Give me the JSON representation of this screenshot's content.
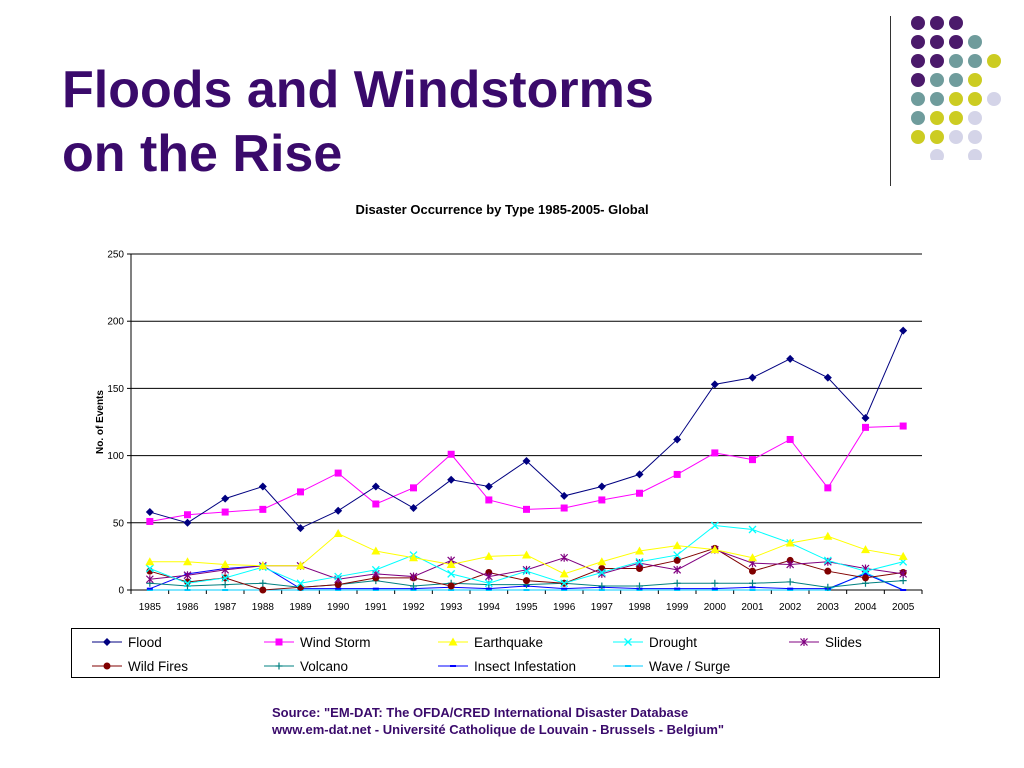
{
  "slide": {
    "title_line1": "Floods and Windstorms",
    "title_line2": "on the Rise",
    "source_line1": "Source: \"EM-DAT: The OFDA/CRED International Disaster Database",
    "source_line2": "www.em-dat.net - Université Catholique de Louvain - Brussels - Belgium\""
  },
  "decoration": {
    "dot_colors": {
      "purple": "#4b1a6b",
      "teal": "#6f9c9c",
      "yellow": "#cccc22",
      "lavender": "#d4d4e8"
    }
  },
  "chart_data": {
    "type": "line",
    "title": "Disaster Occurrence by Type 1985-2005- Global",
    "xlabel": "",
    "ylabel": "No. of Events",
    "ylim": [
      0,
      250
    ],
    "yticks": [
      0,
      50,
      100,
      150,
      200,
      250
    ],
    "grid": true,
    "legend": "bottom",
    "x": [
      "1985",
      "1986",
      "1987",
      "1988",
      "1989",
      "1990",
      "1991",
      "1992",
      "1993",
      "1994",
      "1995",
      "1996",
      "1997",
      "1998",
      "1999",
      "2000",
      "2001",
      "2002",
      "2003",
      "2004",
      "2005"
    ],
    "series": [
      {
        "name": "Flood",
        "color": "#000080",
        "marker": "diamond",
        "values": [
          58,
          50,
          68,
          77,
          46,
          59,
          77,
          61,
          82,
          77,
          96,
          70,
          77,
          86,
          112,
          153,
          158,
          172,
          158,
          128,
          193
        ]
      },
      {
        "name": "Wind Storm",
        "color": "#ff00ff",
        "marker": "square",
        "values": [
          51,
          56,
          58,
          60,
          73,
          87,
          64,
          76,
          101,
          67,
          60,
          61,
          67,
          72,
          86,
          102,
          97,
          112,
          76,
          121,
          122
        ]
      },
      {
        "name": "Earthquake",
        "color": "#ffff00",
        "marker": "triangle",
        "values": [
          21,
          21,
          19,
          18,
          18,
          42,
          29,
          24,
          19,
          25,
          26,
          12,
          21,
          29,
          33,
          30,
          24,
          35,
          40,
          30,
          25
        ]
      },
      {
        "name": "Drought",
        "color": "#00ffff",
        "marker": "x",
        "values": [
          16,
          5,
          9,
          17,
          5,
          10,
          15,
          26,
          12,
          5,
          14,
          5,
          13,
          21,
          26,
          48,
          45,
          35,
          22,
          14,
          21
        ]
      },
      {
        "name": "Slides",
        "color": "#800080",
        "marker": "asterisk",
        "values": [
          8,
          11,
          15,
          18,
          18,
          8,
          12,
          10,
          22,
          10,
          15,
          24,
          12,
          20,
          15,
          30,
          20,
          19,
          21,
          16,
          12
        ]
      },
      {
        "name": "Wild Fires",
        "color": "#800000",
        "marker": "circle",
        "values": [
          14,
          6,
          9,
          0,
          2,
          4,
          9,
          9,
          3,
          13,
          7,
          5,
          16,
          16,
          22,
          31,
          14,
          22,
          14,
          9,
          13
        ]
      },
      {
        "name": "Volcano",
        "color": "#008080",
        "marker": "plus",
        "values": [
          5,
          3,
          4,
          5,
          2,
          4,
          7,
          3,
          5,
          4,
          4,
          5,
          3,
          3,
          5,
          5,
          5,
          6,
          2,
          5,
          7
        ]
      },
      {
        "name": "Insect Infestation",
        "color": "#0000ff",
        "marker": "dash",
        "values": [
          1,
          12,
          16,
          18,
          1,
          1,
          1,
          1,
          2,
          1,
          3,
          1,
          2,
          1,
          1,
          1,
          2,
          1,
          1,
          12,
          0
        ]
      },
      {
        "name": "Wave / Surge",
        "color": "#00ccff",
        "marker": "dash",
        "values": [
          0,
          0,
          0,
          0,
          0,
          0,
          0,
          0,
          0,
          0,
          0,
          0,
          0,
          0,
          0,
          0,
          0,
          0,
          0,
          13,
          0
        ]
      }
    ]
  }
}
